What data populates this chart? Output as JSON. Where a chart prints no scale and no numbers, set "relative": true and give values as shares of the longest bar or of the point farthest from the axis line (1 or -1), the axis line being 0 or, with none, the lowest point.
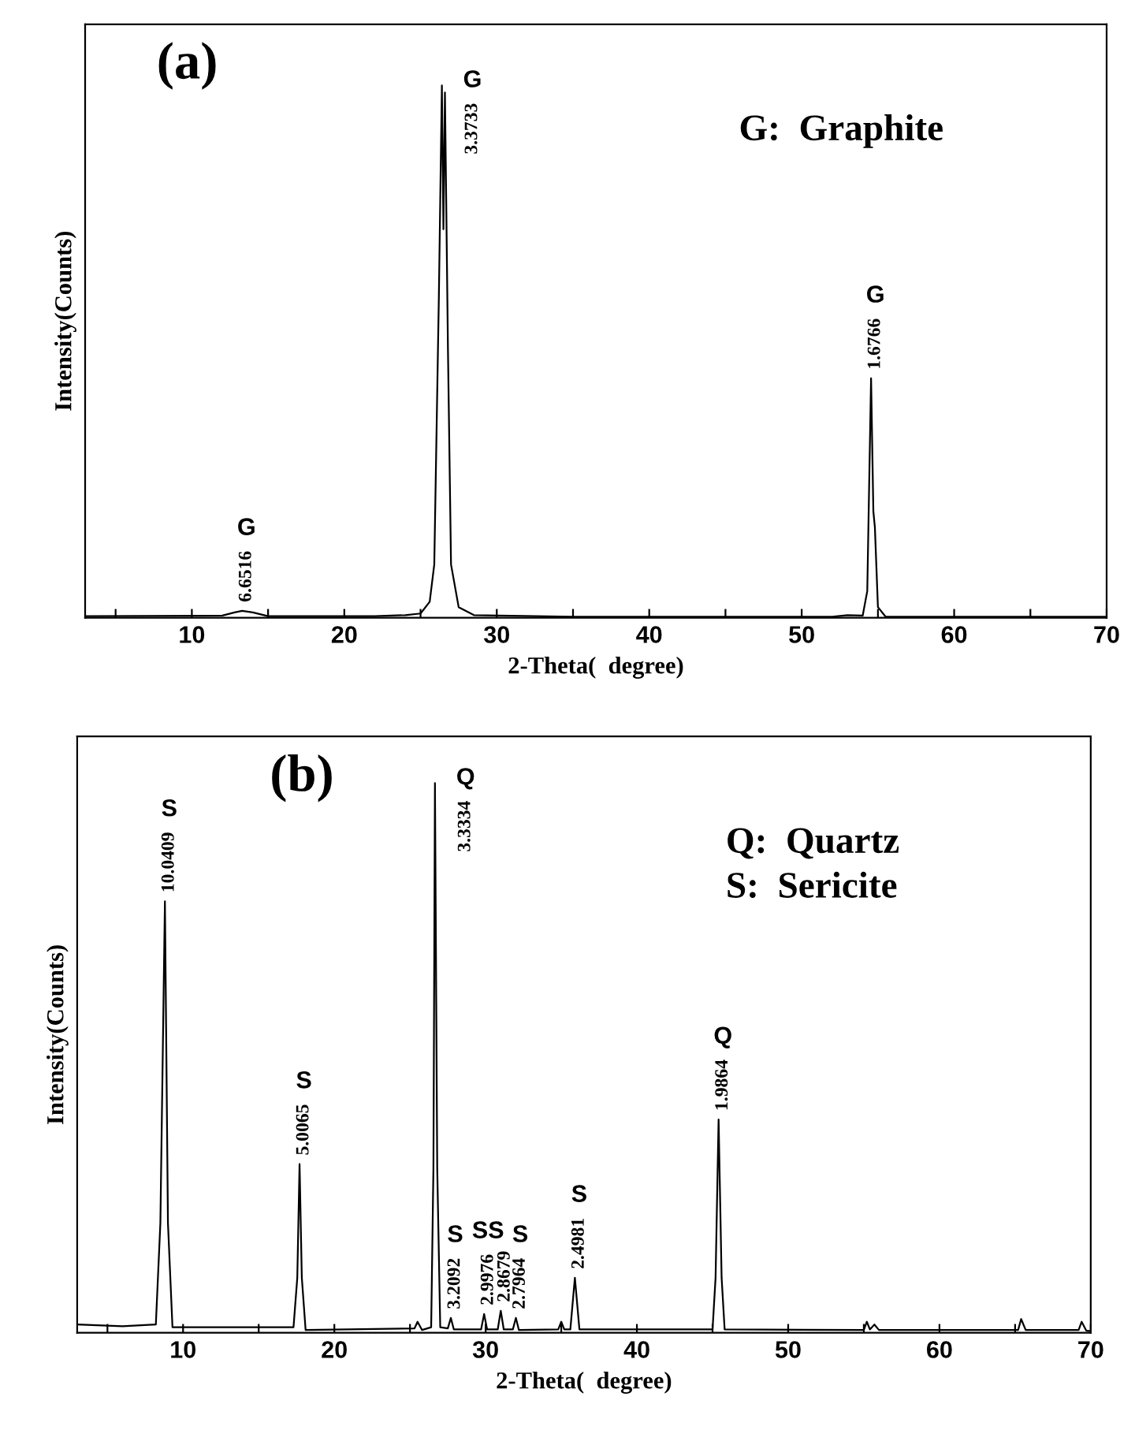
{
  "chart_data": [
    {
      "type": "line",
      "xlabel": "2-Theta(  degree)",
      "ylabel": "Intensity(Counts)",
      "relative": true,
      "tick_labels": "x",
      "grid": false,
      "legend": false,
      "xlim": [
        3,
        70
      ],
      "xticks": [
        {
          "value": 5,
          "label": null
        },
        10,
        {
          "value": 15,
          "label": null
        },
        20,
        {
          "value": 25,
          "label": null
        },
        30,
        {
          "value": 35,
          "label": null
        },
        40,
        {
          "value": 45,
          "label": null
        },
        50,
        {
          "value": 55,
          "label": null
        },
        60,
        {
          "value": 65,
          "label": null
        },
        70
      ],
      "series": [
        {
          "color": "#000000",
          "x": [
            3,
            12,
            12.8,
            13.3,
            14.0,
            15,
            22,
            24,
            25,
            25.6,
            25.9,
            26.2,
            26.4,
            26.5,
            26.6,
            26.8,
            27.0,
            27.5,
            28.5,
            35,
            52,
            53,
            54,
            54.3,
            54.55,
            54.7,
            54.8,
            55.0,
            55.5,
            70
          ],
          "values": [
            0.003,
            0.004,
            0.01,
            0.013,
            0.01,
            0.003,
            0.003,
            0.005,
            0.008,
            0.03,
            0.1,
            0.6,
            1.0,
            0.73,
            0.987,
            0.5,
            0.1,
            0.02,
            0.005,
            0.002,
            0.002,
            0.005,
            0.004,
            0.05,
            0.45,
            0.2,
            0.17,
            0.02,
            0.002,
            0.002
          ]
        }
      ],
      "annotations": [
        "(a)",
        "G:  Graphite",
        "G",
        {
          "text": "6.6516",
          "x": 13.3,
          "y": 0.013
        },
        "G",
        {
          "text": "3.3733",
          "x": 26.4,
          "y": 1.0
        },
        "G",
        {
          "text": "1.6766",
          "x": 54.55,
          "y": 0.45
        }
      ]
    },
    {
      "type": "line",
      "xlabel": "2-Theta(  degree)",
      "ylabel": "Intensity(Counts)",
      "relative": true,
      "tick_labels": "x",
      "grid": false,
      "legend": false,
      "xlim": [
        3,
        70
      ],
      "xticks": [
        {
          "value": 5,
          "label": null
        },
        10,
        {
          "value": 15,
          "label": null
        },
        20,
        {
          "value": 25,
          "label": null
        },
        30,
        {
          "value": 35,
          "label": null
        },
        40,
        {
          "value": 45,
          "label": null
        },
        50,
        {
          "value": 55,
          "label": null
        },
        60,
        {
          "value": 65,
          "label": null
        },
        70
      ],
      "series": [
        {
          "color": "#000000",
          "x": [
            3,
            6,
            8.2,
            8.5,
            8.8,
            9.0,
            9.3,
            17.3,
            17.55,
            17.7,
            17.85,
            18.1,
            25.3,
            25.5,
            25.8,
            26.4,
            26.55,
            26.65,
            26.8,
            27.0,
            27.5,
            27.7,
            27.9,
            29.7,
            29.9,
            30.1,
            30.8,
            31.0,
            31.2,
            31.8,
            32.0,
            32.2,
            34.8,
            35.0,
            35.2,
            35.6,
            35.9,
            36.2,
            45.0,
            45.2,
            45.4,
            45.6,
            45.8,
            55.0,
            55.2,
            55.4,
            55.7,
            56,
            65.2,
            65.4,
            65.7,
            69.2,
            69.4,
            69.7,
            70
          ],
          "values": [
            0.015,
            0.012,
            0.015,
            0.2,
            0.785,
            0.2,
            0.01,
            0.01,
            0.1,
            0.307,
            0.1,
            0.005,
            0.008,
            0.02,
            0.005,
            0.01,
            0.3,
            1.0,
            0.3,
            0.01,
            0.008,
            0.027,
            0.006,
            0.006,
            0.034,
            0.006,
            0.006,
            0.04,
            0.006,
            0.006,
            0.027,
            0.005,
            0.006,
            0.02,
            0.006,
            0.006,
            0.1,
            0.006,
            0.006,
            0.1,
            0.388,
            0.1,
            0.006,
            0.005,
            0.02,
            0.006,
            0.015,
            0.005,
            0.005,
            0.025,
            0.005,
            0.005,
            0.02,
            0.004,
            0.003
          ]
        }
      ],
      "annotations": [
        "(b)",
        "Q:  Quartz",
        "S:  Sericite",
        "S",
        {
          "text": "10.0409",
          "x": 8.8,
          "y": 0.785
        },
        "S",
        {
          "text": "5.0065",
          "x": 17.7,
          "y": 0.307
        },
        "Q",
        {
          "text": "3.3334",
          "x": 26.65,
          "y": 1.0
        },
        "S",
        {
          "text": "3.2092",
          "x": 27.7,
          "y": 0.027
        },
        "SS",
        {
          "text": "2.9976",
          "x": 29.9,
          "y": 0.034
        },
        {
          "text": "2.8679",
          "x": 31.0,
          "y": 0.04
        },
        "S",
        {
          "text": "2.7964",
          "x": 32.0,
          "y": 0.027
        },
        "S",
        {
          "text": "2.4981",
          "x": 35.9,
          "y": 0.1
        },
        "Q",
        {
          "text": "1.9864",
          "x": 45.4,
          "y": 0.388
        }
      ]
    }
  ]
}
